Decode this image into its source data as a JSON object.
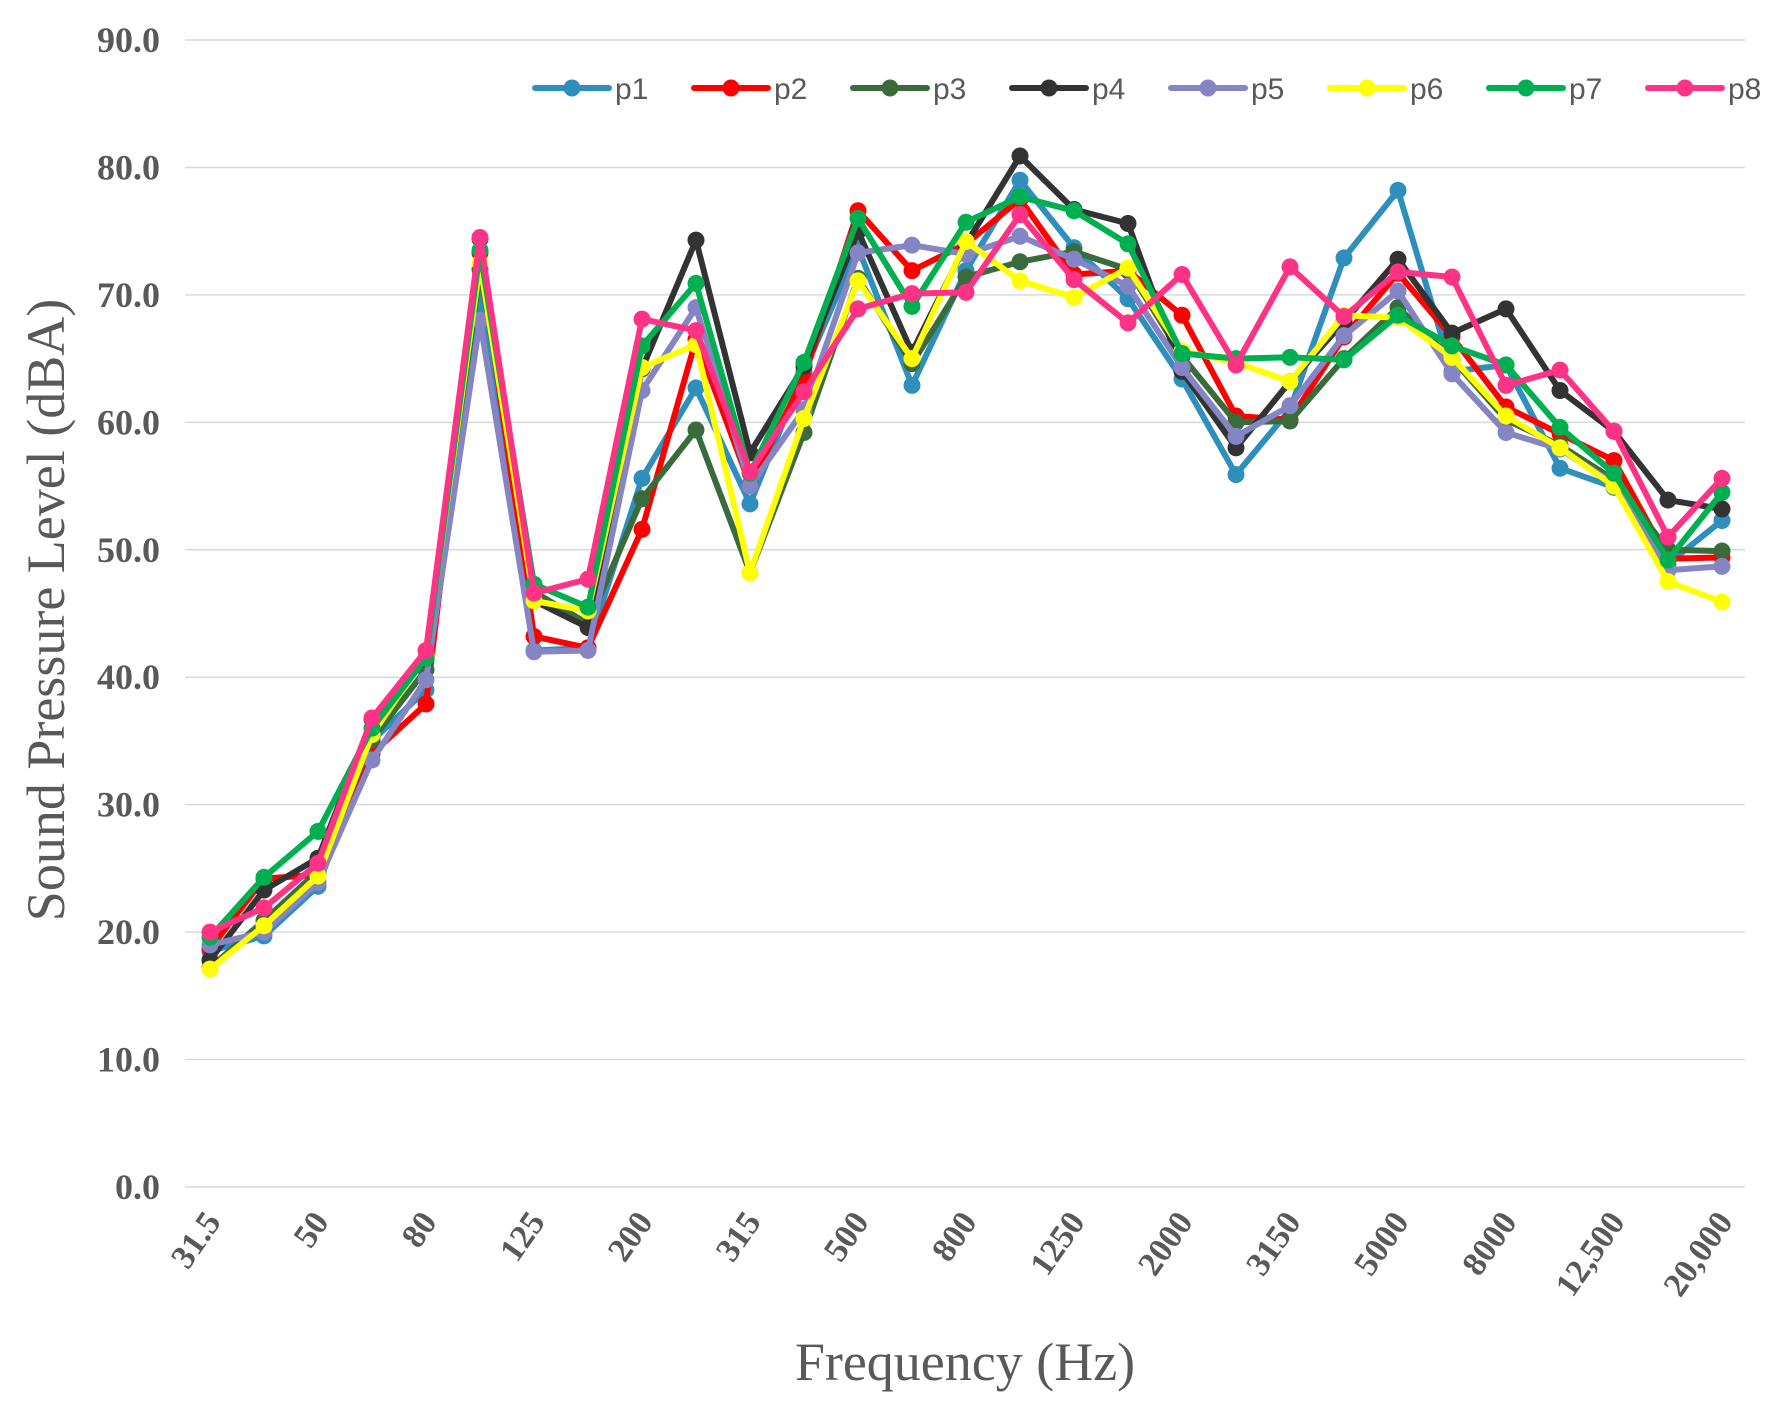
{
  "chart_data": {
    "type": "line",
    "title": "",
    "xlabel": "Frequency (Hz)",
    "ylabel": "Sound Pressure Level (dBA)",
    "ylim": [
      0,
      90
    ],
    "yticks": [
      "0.0",
      "10.0",
      "20.0",
      "30.0",
      "40.0",
      "50.0",
      "60.0",
      "70.0",
      "80.0",
      "90.0"
    ],
    "x": [
      "31.5",
      "40",
      "50",
      "63",
      "80",
      "100",
      "125",
      "160",
      "200",
      "250",
      "315",
      "400",
      "500",
      "630",
      "800",
      "1000",
      "1250",
      "1600",
      "2000",
      "2500",
      "3150",
      "4000",
      "5000",
      "6300",
      "8000",
      "10000",
      "12,500",
      "16000",
      "20,000"
    ],
    "xtick_labels_shown": [
      "31.5",
      "",
      "50",
      "",
      "80",
      "",
      "125",
      "",
      "200",
      "",
      "315",
      "",
      "500",
      "",
      "800",
      "",
      "1250",
      "",
      "2000",
      "",
      "3150",
      "",
      "5000",
      "",
      "8000",
      "",
      "12,500",
      "",
      "20,000"
    ],
    "legend_position": "top-right",
    "grid": true,
    "series": [
      {
        "name": "p1",
        "color": "#2e8fbd",
        "values": [
          18.5,
          19.7,
          23.6,
          35.0,
          39.0,
          70.0,
          42.1,
          42.3,
          55.6,
          62.7,
          53.6,
          64.0,
          73.7,
          62.9,
          71.9,
          79.0,
          73.7,
          69.7,
          63.4,
          55.9,
          61.0,
          72.9,
          78.2,
          64.0,
          64.5,
          56.4,
          54.9,
          48.9,
          52.3
        ]
      },
      {
        "name": "p2",
        "color": "#ff0000",
        "values": [
          18.7,
          24.2,
          24.5,
          34.0,
          37.9,
          73.3,
          43.2,
          42.3,
          51.6,
          66.5,
          55.1,
          63.5,
          76.6,
          71.9,
          74.0,
          77.5,
          71.6,
          71.9,
          68.4,
          60.5,
          60.2,
          66.7,
          71.7,
          66.7,
          61.2,
          59.1,
          57.0,
          49.3,
          49.4
        ]
      },
      {
        "name": "p3",
        "color": "#3a6b3a",
        "values": [
          17.2,
          20.9,
          24.8,
          35.1,
          40.6,
          72.0,
          46.7,
          44.2,
          54.0,
          59.4,
          48.2,
          59.2,
          71.3,
          64.6,
          71.4,
          72.6,
          73.4,
          72.0,
          65.2,
          60.0,
          60.1,
          65.0,
          69.0,
          65.0,
          60.2,
          58.2,
          55.5,
          50.0,
          49.9
        ]
      },
      {
        "name": "p4",
        "color": "#333333",
        "values": [
          17.8,
          23.3,
          25.8,
          36.7,
          41.4,
          74.4,
          46.0,
          43.9,
          64.2,
          74.3,
          57.6,
          64.4,
          75.0,
          65.5,
          74.0,
          80.9,
          76.7,
          75.6,
          64.0,
          58.0,
          63.2,
          67.9,
          72.8,
          67.0,
          68.9,
          62.5,
          59.3,
          53.9,
          53.2
        ]
      },
      {
        "name": "p5",
        "color": "#8585c5",
        "values": [
          19.0,
          20.0,
          23.9,
          33.5,
          39.8,
          68.0,
          42.0,
          42.1,
          62.5,
          69.0,
          55.0,
          61.0,
          73.3,
          73.9,
          73.2,
          74.6,
          72.8,
          70.7,
          64.3,
          58.9,
          61.3,
          66.8,
          70.3,
          63.8,
          59.2,
          57.9,
          55.2,
          48.4,
          48.7
        ]
      },
      {
        "name": "p6",
        "color": "#ffff00",
        "values": [
          17.1,
          20.5,
          24.4,
          35.5,
          41.7,
          72.5,
          46.0,
          45.2,
          64.3,
          66.1,
          48.2,
          60.3,
          71.1,
          65.0,
          74.2,
          71.1,
          69.8,
          72.1,
          65.6,
          64.7,
          63.2,
          68.4,
          68.2,
          65.1,
          60.5,
          58.0,
          55.0,
          47.5,
          45.9
        ]
      },
      {
        "name": "p7",
        "color": "#00b050",
        "values": [
          19.6,
          24.3,
          27.9,
          36.0,
          41.5,
          73.5,
          47.3,
          45.5,
          66.0,
          70.9,
          56.0,
          64.7,
          76.0,
          69.1,
          75.7,
          77.7,
          76.6,
          74.0,
          65.4,
          65.0,
          65.1,
          64.9,
          68.4,
          66.0,
          64.5,
          59.6,
          56.0,
          49.2,
          54.5
        ]
      },
      {
        "name": "p8",
        "color": "#ff3385",
        "values": [
          20.0,
          21.9,
          25.4,
          36.8,
          42.1,
          74.5,
          46.6,
          47.7,
          68.1,
          67.2,
          56.1,
          62.4,
          68.9,
          70.1,
          70.2,
          76.3,
          71.2,
          67.8,
          71.6,
          64.5,
          72.2,
          68.3,
          71.8,
          71.4,
          62.9,
          64.1,
          59.3,
          51.0,
          55.6
        ]
      }
    ]
  }
}
